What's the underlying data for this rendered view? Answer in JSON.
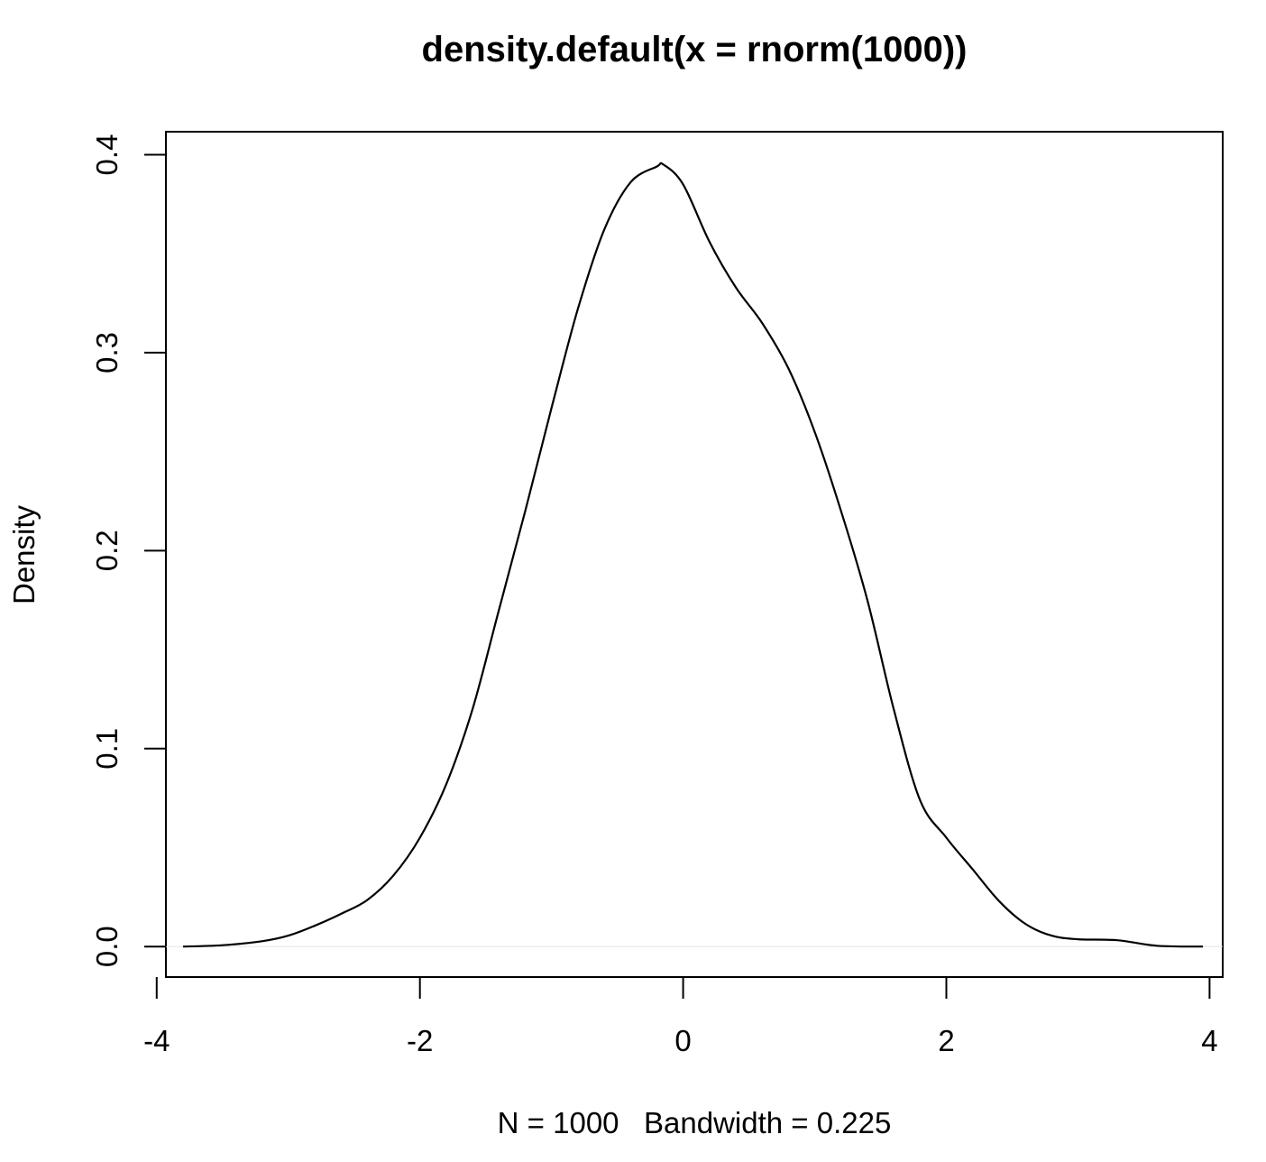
{
  "chart_data": {
    "type": "line",
    "title": "density.default(x = rnorm(1000))",
    "xlabel": "N = 1000   Bandwidth = 0.225",
    "ylabel": "Density",
    "xlim": [
      -3.93,
      4.1
    ],
    "ylim": [
      -0.0154,
      0.4116
    ],
    "x_ticks": [
      -4,
      -2,
      0,
      2,
      4
    ],
    "x_tick_labels": [
      "-4",
      "-2",
      "0",
      "2",
      "4"
    ],
    "y_ticks": [
      0.0,
      0.1,
      0.2,
      0.3,
      0.4
    ],
    "y_tick_labels": [
      "0.0",
      "0.1",
      "0.2",
      "0.3",
      "0.4"
    ],
    "grid": false,
    "zero_line": true,
    "line_color": "#000000",
    "zero_line_color": "#e6e6e6",
    "series": [
      {
        "x": [
          -3.8,
          -3.5,
          -3.2,
          -3.0,
          -2.8,
          -2.6,
          -2.4,
          -2.2,
          -2.0,
          -1.8,
          -1.6,
          -1.4,
          -1.2,
          -1.0,
          -0.8,
          -0.6,
          -0.4,
          -0.2,
          -0.15,
          0.0,
          0.2,
          0.4,
          0.6,
          0.8,
          1.0,
          1.2,
          1.4,
          1.6,
          1.8,
          2.0,
          2.2,
          2.4,
          2.6,
          2.8,
          3.0,
          3.3,
          3.6,
          3.95
        ],
        "y": [
          0.0,
          0.0007,
          0.0027,
          0.0055,
          0.0105,
          0.0165,
          0.0235,
          0.036,
          0.055,
          0.082,
          0.12,
          0.17,
          0.22,
          0.272,
          0.322,
          0.362,
          0.386,
          0.394,
          0.395,
          0.385,
          0.356,
          0.333,
          0.315,
          0.292,
          0.26,
          0.22,
          0.175,
          0.12,
          0.074,
          0.055,
          0.039,
          0.023,
          0.0115,
          0.0055,
          0.0037,
          0.0032,
          0.0004,
          0.0
        ]
      }
    ]
  }
}
